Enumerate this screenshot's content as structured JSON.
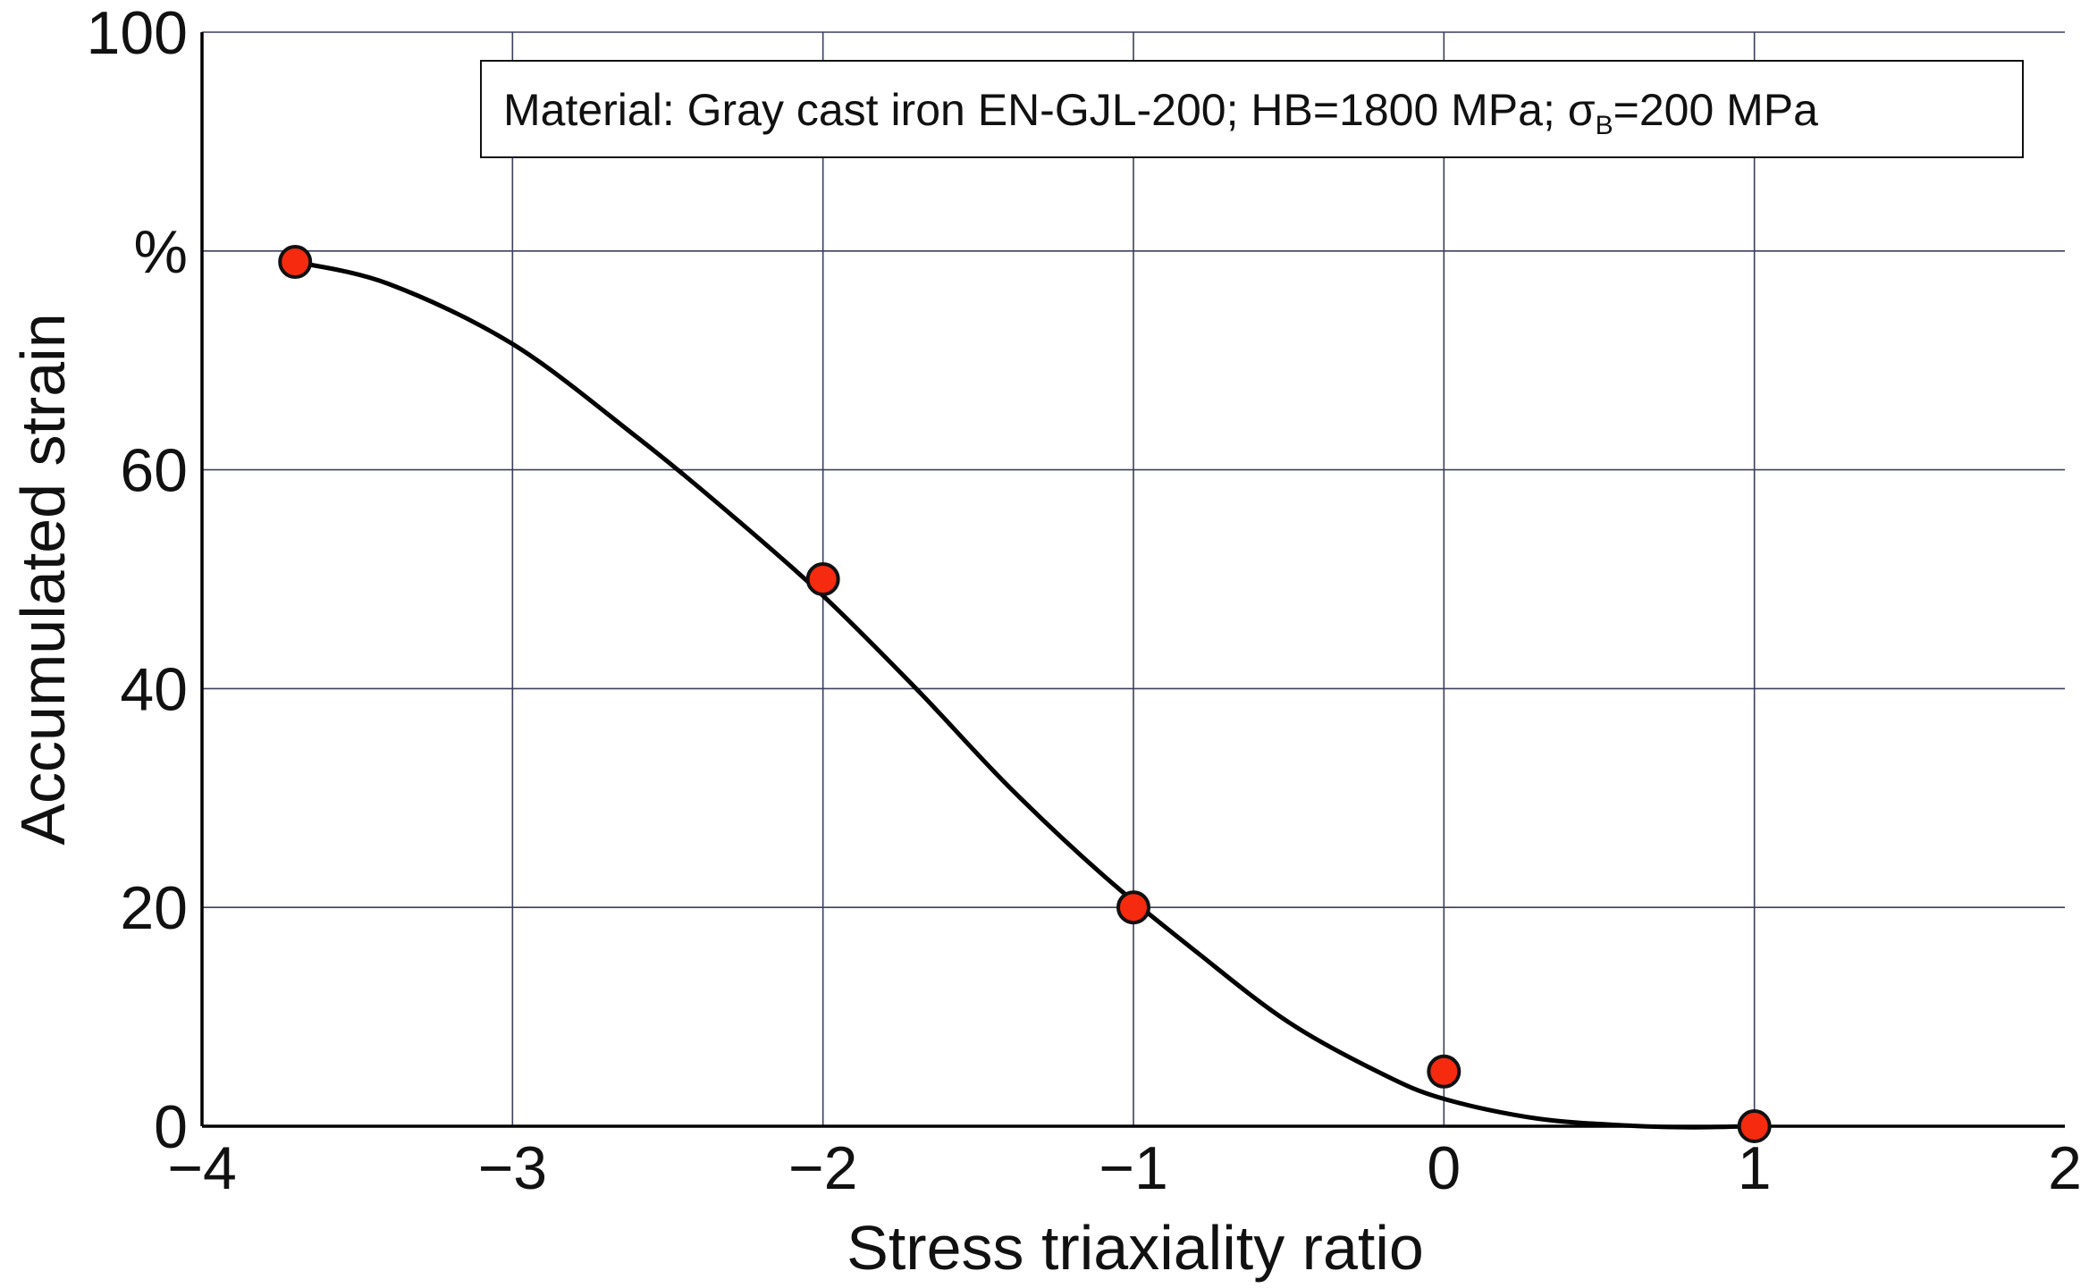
{
  "chart_data": {
    "type": "scatter",
    "xlabel": "Stress triaxiality ratio",
    "ylabel": "Accumulated strain",
    "xlim": [
      -4,
      2
    ],
    "ylim": [
      0,
      100
    ],
    "xticks": [
      -4,
      -3,
      -2,
      -1,
      0,
      1,
      2
    ],
    "xtick_labels": [
      "−4",
      "−3",
      "−2",
      "−1",
      "0",
      "1",
      "2"
    ],
    "yticks": [
      0,
      20,
      40,
      60,
      80,
      100
    ],
    "ytick_labels": [
      "0",
      "20",
      "40",
      "60",
      "%",
      "100"
    ],
    "grid": true,
    "annotation": {
      "prefix": "Material: Gray cast iron EN-GJL-200; HB=1800 MPa; ",
      "symbol": "σ",
      "subscript": "B",
      "suffix": "=200 MPa"
    },
    "points": {
      "x": [
        -3.7,
        -2.0,
        -1.0,
        0.0,
        1.0
      ],
      "y": [
        79,
        50,
        20,
        5,
        0
      ]
    },
    "curve": {
      "x": [
        -3.7,
        -3.4,
        -3.0,
        -2.6,
        -2.3,
        -2.0,
        -1.7,
        -1.4,
        -1.1,
        -0.8,
        -0.5,
        -0.2,
        0.0,
        0.3,
        0.6,
        0.8,
        1.0
      ],
      "y": [
        79,
        77,
        71.5,
        63,
        56,
        48.5,
        40,
        31,
        23,
        16,
        9.5,
        4.8,
        2.5,
        0.7,
        0.05,
        -0.1,
        0
      ]
    },
    "colors": {
      "marker_fill": "#f52a0f",
      "marker_stroke": "#111111",
      "curve": "#000000",
      "grid": "#3b3f5c",
      "axis": "#000000"
    }
  }
}
